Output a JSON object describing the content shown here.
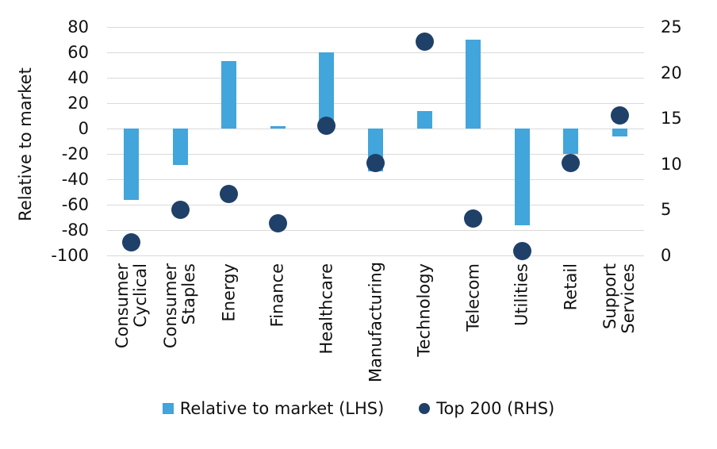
{
  "chart_data": {
    "type": "combo-bar-scatter",
    "categories": [
      "Consumer\nCyclical",
      "Consumer\nStaples",
      "Energy",
      "Finance",
      "Healthcare",
      "Manufacturing",
      "Technology",
      "Telecom",
      "Utilities",
      "Retail",
      "Support\nServices"
    ],
    "series": [
      {
        "name": "Relative to market (LHS)",
        "type": "bar",
        "axis": "left",
        "color": "#42a5dc",
        "values": [
          -56,
          -29,
          53,
          2,
          60,
          -34,
          14,
          70,
          -76,
          -20,
          -6
        ]
      },
      {
        "name": "Top 200 (RHS)",
        "type": "scatter",
        "axis": "right",
        "color": "#1f4068",
        "values": [
          1.4,
          5,
          6.7,
          3.5,
          14.2,
          10.1,
          23.4,
          4,
          0.5,
          10.1,
          15.3
        ]
      }
    ],
    "left_axis": {
      "label": "Relative to market",
      "min": -100,
      "max": 80,
      "step": 20,
      "ticks": [
        "80",
        "60",
        "40",
        "20",
        "0",
        "-20",
        "-40",
        "-60",
        "-80",
        "-100"
      ]
    },
    "right_axis": {
      "label": "",
      "min": 0,
      "max": 25,
      "step": 5,
      "ticks": [
        "25",
        "20",
        "15",
        "10",
        "5",
        "0"
      ]
    },
    "grid": "horizontal",
    "gridline_color": "#d9d9d9",
    "legend_position": "bottom",
    "title": ""
  }
}
